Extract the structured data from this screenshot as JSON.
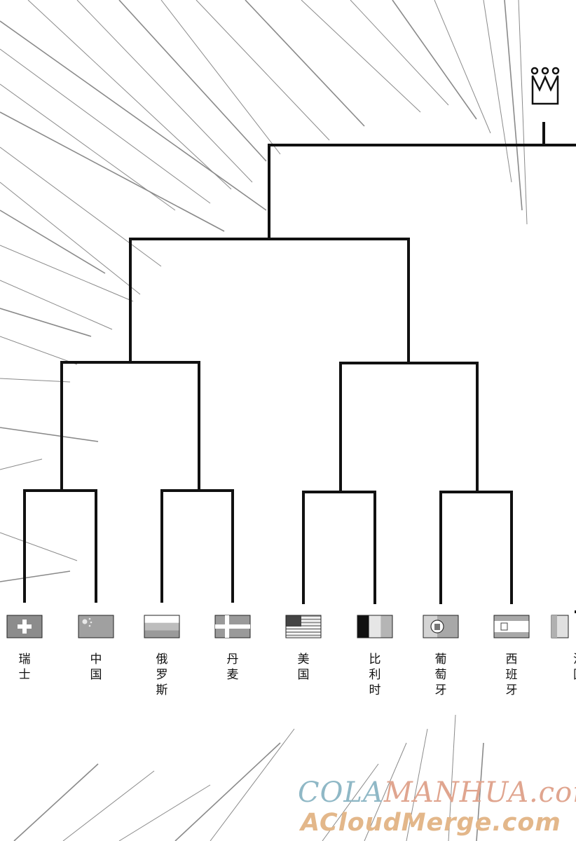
{
  "bracket": {
    "teams": [
      {
        "name": "瑞士",
        "flag": "switzerland"
      },
      {
        "name": "中国",
        "flag": "china"
      },
      {
        "name": "俄罗斯",
        "flag": "russia"
      },
      {
        "name": "丹麦",
        "flag": "denmark"
      },
      {
        "name": "美国",
        "flag": "usa"
      },
      {
        "name": "比利时",
        "flag": "belgium"
      },
      {
        "name": "葡萄牙",
        "flag": "portugal"
      },
      {
        "name": "西班牙",
        "flag": "spain"
      },
      {
        "name": "法国",
        "flag": "france-partial"
      }
    ],
    "crown_icon": "crown-icon"
  },
  "watermark": {
    "line1_a": "COLA",
    "line1_b": "MANHUA.com",
    "line2": "ACloudMerge.com"
  },
  "colors": {
    "ink": "#111111",
    "speedline": "#8a8a8a",
    "watermark_blue": "#8fb8c6",
    "watermark_pink": "#e0a58f",
    "watermark_gold": "#e3b78a"
  }
}
